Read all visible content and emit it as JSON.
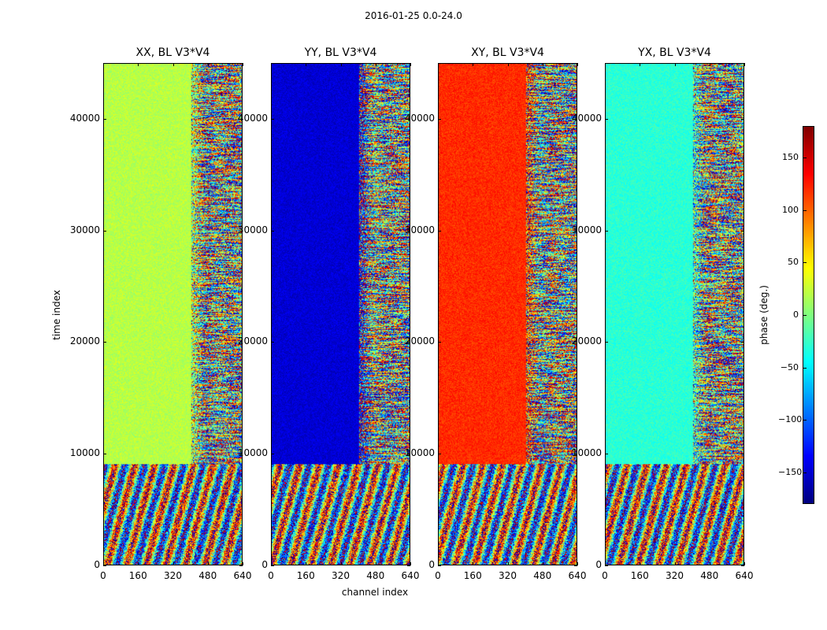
{
  "suptitle": "2016-01-25 0.0-24.0",
  "chart_data": {
    "type": "heatmap",
    "xlabel": "channel index",
    "ylabel": "time index",
    "colorbar_label": "phase (deg.)",
    "colormap": "jet",
    "value_range": [
      -180,
      180
    ],
    "colorbar_ticks": [
      150,
      100,
      50,
      0,
      -50,
      -100,
      -150
    ],
    "colorbar_tick_labels": [
      "150",
      "100",
      "50",
      "0",
      "−50",
      "−100",
      "−150"
    ],
    "xlim": [
      0,
      640
    ],
    "ylim": [
      0,
      45000
    ],
    "xticks": [
      0,
      160,
      320,
      480,
      640
    ],
    "xtick_labels": [
      "0",
      "160",
      "320",
      "480",
      "640"
    ],
    "yticks": [
      0,
      10000,
      20000,
      30000,
      40000
    ],
    "ytick_labels": [
      "0",
      "10000",
      "20000",
      "30000",
      "40000"
    ],
    "panels": [
      {
        "title": "XX, BL V3*V4",
        "dominant_phase": 20
      },
      {
        "title": "YY, BL V3*V4",
        "dominant_phase": -150
      },
      {
        "title": "XY, BL V3*V4",
        "dominant_phase": 120
      },
      {
        "title": "YX, BL V3*V4",
        "dominant_phase": -30
      }
    ]
  }
}
